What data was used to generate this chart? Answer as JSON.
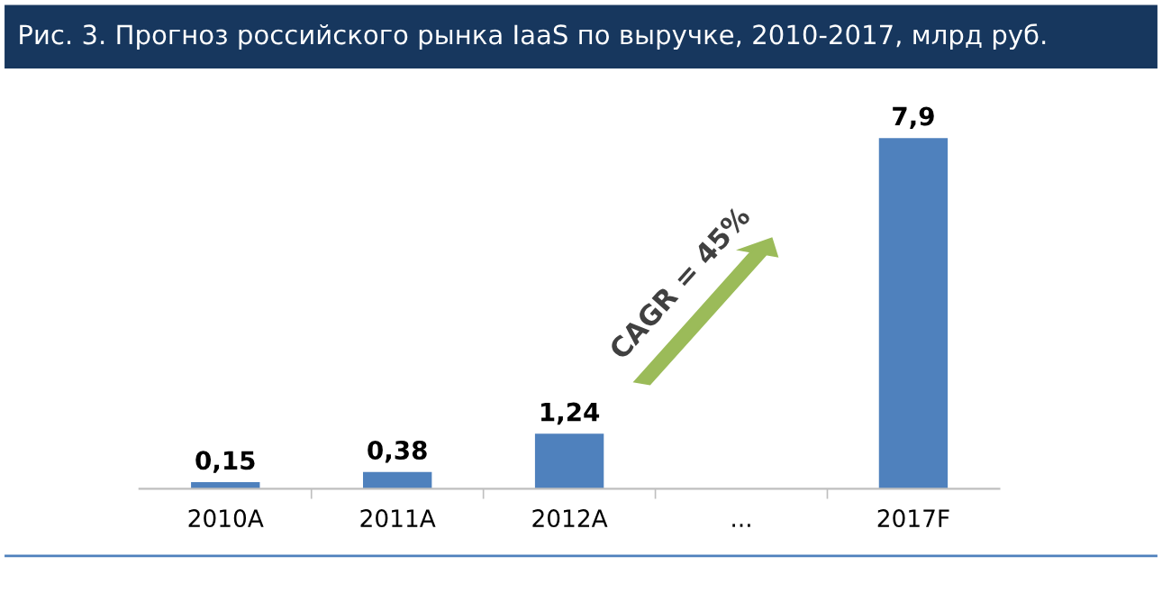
{
  "chart_data": {
    "type": "bar",
    "title": "Рис. 3. Прогноз российского рынка IaaS по выручке, 2010-2017, млрд руб.",
    "categories": [
      "2010A",
      "2011A",
      "2012A",
      "...",
      "2017F"
    ],
    "values": [
      0.15,
      0.38,
      1.24,
      null,
      7.9
    ],
    "value_labels": [
      "0,15",
      "0,38",
      "1,24",
      null,
      "7,9"
    ],
    "color": "#4f81bd",
    "annotations": [
      "CAGR = 45%"
    ],
    "grid": false,
    "legend": false
  }
}
